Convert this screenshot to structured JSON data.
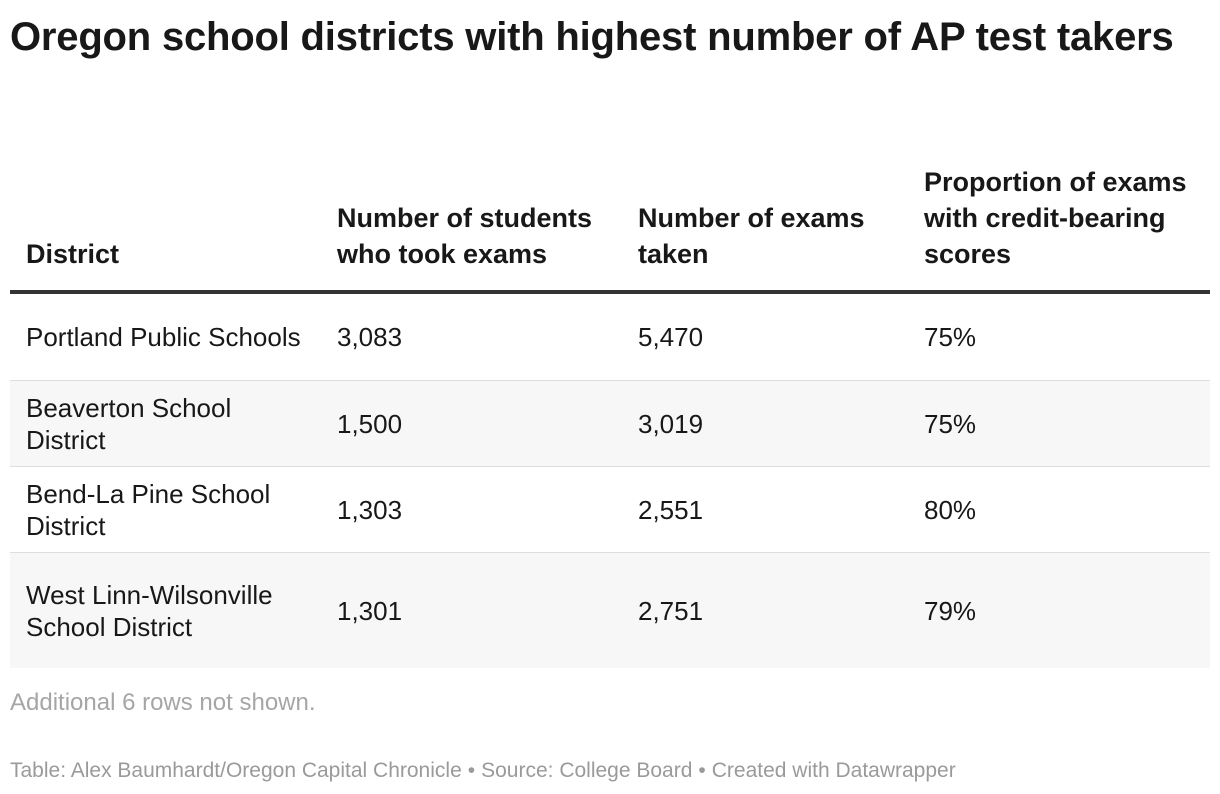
{
  "chart_data": {
    "type": "table",
    "title": "Oregon school districts with highest number of AP test takers",
    "columns": [
      "District",
      "Number of students who took exams",
      "Number of exams taken",
      "Proportion of exams with credit-bearing scores"
    ],
    "rows": [
      [
        "Portland Public Schools",
        "3,083",
        "5,470",
        "75%"
      ],
      [
        "Beaverton School District",
        "1,500",
        "3,019",
        "75%"
      ],
      [
        "Bend-La Pine School District",
        "1,303",
        "2,551",
        "80%"
      ],
      [
        "West Linn-Wilsonville School District",
        "1,301",
        "2,751",
        "79%"
      ]
    ],
    "note": "Additional 6 rows not shown.",
    "footer": {
      "credit": "Table: Alex Baumhardt/Oregon Capital Chronicle",
      "source": "Source: College Board",
      "tool": "Created with Datawrapper",
      "separator": "•"
    }
  }
}
